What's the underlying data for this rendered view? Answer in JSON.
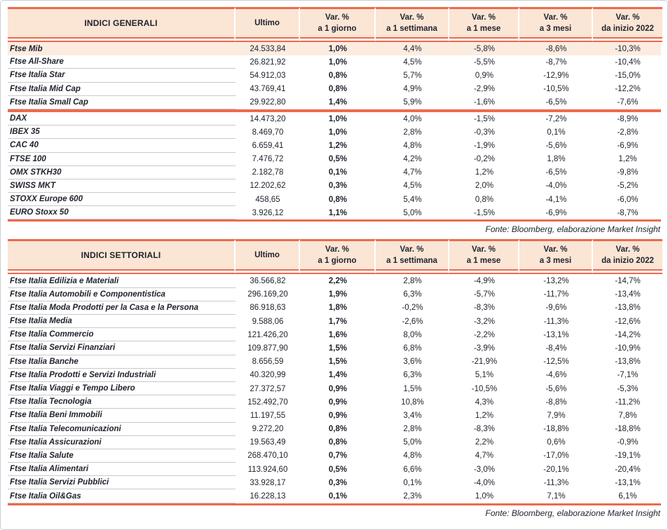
{
  "palette": {
    "accent_red": "#ed6a4e",
    "header_bg": "#fbe5d5",
    "highlight_row_bg": "#fcece0",
    "text_ink": "#20242e",
    "row_separator": "#c9c9c9",
    "outer_frame": "#c9ced4"
  },
  "header": {
    "ultimo": "Ultimo",
    "var_label": "Var. %",
    "periods": [
      "a 1 giorno",
      "a 1 settimana",
      "a 1 mese",
      "a 3 mesi",
      "da inizio 2022"
    ]
  },
  "tables": [
    {
      "title": "INDICI GENERALI",
      "source": "Fonte: Bloomberg, elaborazione Market Insight",
      "groups": [
        {
          "rows": [
            {
              "highlight": true,
              "cells": [
                "Ftse Mib",
                "24.533,84",
                "1,0%",
                "4,4%",
                "-5,8%",
                "-8,6%",
                "-10,3%"
              ]
            },
            {
              "highlight": false,
              "cells": [
                "Ftse All-Share",
                "26.821,92",
                "1,0%",
                "4,5%",
                "-5,5%",
                "-8,7%",
                "-10,4%"
              ]
            },
            {
              "highlight": false,
              "cells": [
                "Ftse Italia Star",
                "54.912,03",
                "0,8%",
                "5,7%",
                "0,9%",
                "-12,9%",
                "-15,0%"
              ]
            },
            {
              "highlight": false,
              "cells": [
                "Ftse Italia Mid Cap",
                "43.769,41",
                "0,8%",
                "4,9%",
                "-2,9%",
                "-10,5%",
                "-12,2%"
              ]
            },
            {
              "highlight": false,
              "cells": [
                "Ftse Italia Small Cap",
                "29.922,80",
                "1,4%",
                "5,9%",
                "-1,6%",
                "-6,5%",
                "-7,6%"
              ]
            }
          ]
        },
        {
          "rows": [
            {
              "highlight": false,
              "cells": [
                "DAX",
                "14.473,20",
                "1,0%",
                "4,0%",
                "-1,5%",
                "-7,2%",
                "-8,9%"
              ]
            },
            {
              "highlight": false,
              "cells": [
                "IBEX 35",
                "8.469,70",
                "1,0%",
                "2,8%",
                "-0,3%",
                "0,1%",
                "-2,8%"
              ]
            },
            {
              "highlight": false,
              "cells": [
                "CAC 40",
                "6.659,41",
                "1,2%",
                "4,8%",
                "-1,9%",
                "-5,6%",
                "-6,9%"
              ]
            },
            {
              "highlight": false,
              "cells": [
                "FTSE 100",
                "7.476,72",
                "0,5%",
                "4,2%",
                "-0,2%",
                "1,8%",
                "1,2%"
              ]
            },
            {
              "highlight": false,
              "cells": [
                "OMX STKH30",
                "2.182,78",
                "0,1%",
                "4,7%",
                "1,2%",
                "-6,5%",
                "-9,8%"
              ]
            },
            {
              "highlight": false,
              "cells": [
                "SWISS MKT",
                "12.202,62",
                "0,3%",
                "4,5%",
                "2,0%",
                "-4,0%",
                "-5,2%"
              ]
            },
            {
              "highlight": false,
              "cells": [
                "STOXX Europe 600",
                "458,65",
                "0,8%",
                "5,4%",
                "0,8%",
                "-4,1%",
                "-6,0%"
              ]
            },
            {
              "highlight": false,
              "cells": [
                "EURO Stoxx 50",
                "3.926,12",
                "1,1%",
                "5,0%",
                "-1,5%",
                "-6,9%",
                "-8,7%"
              ]
            }
          ]
        }
      ]
    },
    {
      "title": "INDICI SETTORIALI",
      "source": "Fonte: Bloomberg, elaborazione Market Insight",
      "groups": [
        {
          "rows": [
            {
              "highlight": false,
              "cells": [
                "Ftse Italia Edilizia e Materiali",
                "36.566,82",
                "2,2%",
                "2,8%",
                "-4,9%",
                "-13,2%",
                "-14,7%"
              ]
            },
            {
              "highlight": false,
              "cells": [
                "Ftse Italia Automobili e Componentistica",
                "296.169,20",
                "1,9%",
                "6,3%",
                "-5,7%",
                "-11,7%",
                "-13,4%"
              ]
            },
            {
              "highlight": false,
              "cells": [
                "Ftse Italia Moda Prodotti per la Casa e la Persona",
                "86.918,63",
                "1,8%",
                "-0,2%",
                "-8,3%",
                "-9,6%",
                "-13,8%"
              ]
            },
            {
              "highlight": false,
              "cells": [
                "Ftse Italia Media",
                "9.588,06",
                "1,7%",
                "-2,6%",
                "-3,2%",
                "-11,3%",
                "-12,6%"
              ]
            },
            {
              "highlight": false,
              "cells": [
                "Ftse Italia Commercio",
                "121.426,20",
                "1,6%",
                "8,0%",
                "-2,2%",
                "-13,1%",
                "-14,2%"
              ]
            },
            {
              "highlight": false,
              "cells": [
                "Ftse Italia Servizi Finanziari",
                "109.877,90",
                "1,5%",
                "6,8%",
                "-3,9%",
                "-8,4%",
                "-10,9%"
              ]
            },
            {
              "highlight": false,
              "cells": [
                "Ftse Italia Banche",
                "8.656,59",
                "1,5%",
                "3,6%",
                "-21,9%",
                "-12,5%",
                "-13,8%"
              ]
            },
            {
              "highlight": false,
              "cells": [
                "Ftse Italia Prodotti e Servizi Industriali",
                "40.320,99",
                "1,4%",
                "6,3%",
                "5,1%",
                "-4,6%",
                "-7,1%"
              ]
            },
            {
              "highlight": false,
              "cells": [
                "Ftse Italia Viaggi e Tempo Libero",
                "27.372,57",
                "0,9%",
                "1,5%",
                "-10,5%",
                "-5,6%",
                "-5,3%"
              ]
            },
            {
              "highlight": false,
              "cells": [
                "Ftse Italia Tecnologia",
                "152.492,70",
                "0,9%",
                "10,8%",
                "4,3%",
                "-8,8%",
                "-11,2%"
              ]
            },
            {
              "highlight": false,
              "cells": [
                "Ftse Italia Beni Immobili",
                "11.197,55",
                "0,9%",
                "3,4%",
                "1,2%",
                "7,9%",
                "7,8%"
              ]
            },
            {
              "highlight": false,
              "cells": [
                "Ftse Italia Telecomunicazioni",
                "9.272,20",
                "0,8%",
                "2,8%",
                "-8,3%",
                "-18,8%",
                "-18,8%"
              ]
            },
            {
              "highlight": false,
              "cells": [
                "Ftse Italia Assicurazioni",
                "19.563,49",
                "0,8%",
                "5,0%",
                "2,2%",
                "0,6%",
                "-0,9%"
              ]
            },
            {
              "highlight": false,
              "cells": [
                "Ftse Italia Salute",
                "268.470,10",
                "0,7%",
                "4,8%",
                "4,7%",
                "-17,0%",
                "-19,1%"
              ]
            },
            {
              "highlight": false,
              "cells": [
                "Ftse Italia Alimentari",
                "113.924,60",
                "0,5%",
                "6,6%",
                "-3,0%",
                "-20,1%",
                "-20,4%"
              ]
            },
            {
              "highlight": false,
              "cells": [
                "Ftse Italia Servizi Pubblici",
                "33.928,17",
                "0,3%",
                "0,1%",
                "-4,0%",
                "-11,3%",
                "-13,1%"
              ]
            },
            {
              "highlight": false,
              "cells": [
                "Ftse Italia Oil&Gas",
                "16.228,13",
                "0,1%",
                "2,3%",
                "1,0%",
                "7,1%",
                "6,1%"
              ]
            }
          ]
        }
      ]
    }
  ]
}
